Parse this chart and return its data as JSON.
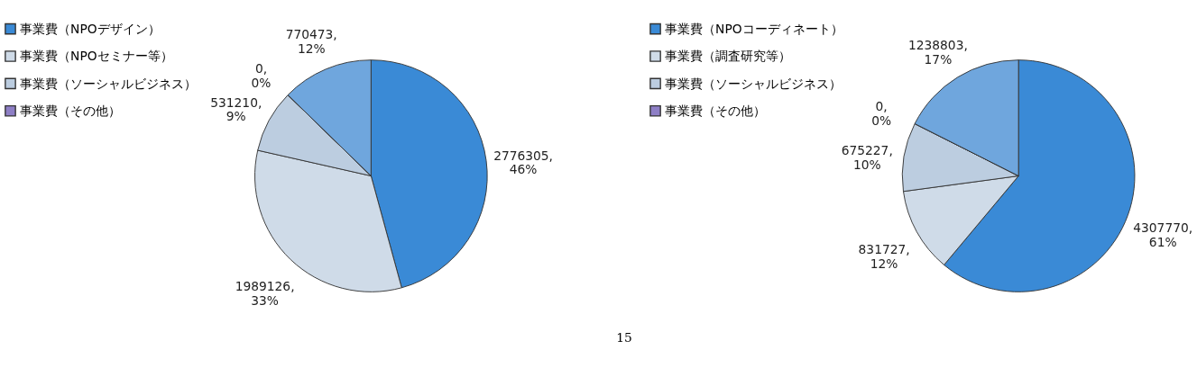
{
  "chart_data": [
    {
      "type": "pie",
      "categories": [
        "事業費（NPOデザイン）",
        "事業費（NPOセミナー等）",
        "事業費（ソーシャルビジネス）",
        "事業費（その他）",
        null
      ],
      "values": [
        2776305,
        1989126,
        531210,
        0,
        770473
      ],
      "colors": [
        "#3a8ad6",
        "#cfdbe8",
        "#bccde0",
        "#8e7fc6",
        "#6fa6dd"
      ],
      "value_labels": [
        "2776305, 46%",
        "1989126, 33%",
        "531210, 9%",
        "0, 0%",
        "770473, 12%"
      ],
      "legend": "left",
      "annotations": [
        "15"
      ]
    },
    {
      "type": "pie",
      "categories": [
        "事業費（NPOコーディネート）",
        "事業費（調査研究等）",
        "事業費（ソーシャルビジネス）",
        "事業費（その他）",
        null
      ],
      "values": [
        4307770,
        831727,
        675227,
        0,
        1238803
      ],
      "colors": [
        "#3a8ad6",
        "#cfdbe8",
        "#bccde0",
        "#8e7fc6",
        "#6fa6dd"
      ],
      "value_labels": [
        "4307770, 61%",
        "831727, 12%",
        "675227, 10%",
        "0, 0%",
        "1238803, 17%"
      ],
      "legend": "left"
    }
  ]
}
